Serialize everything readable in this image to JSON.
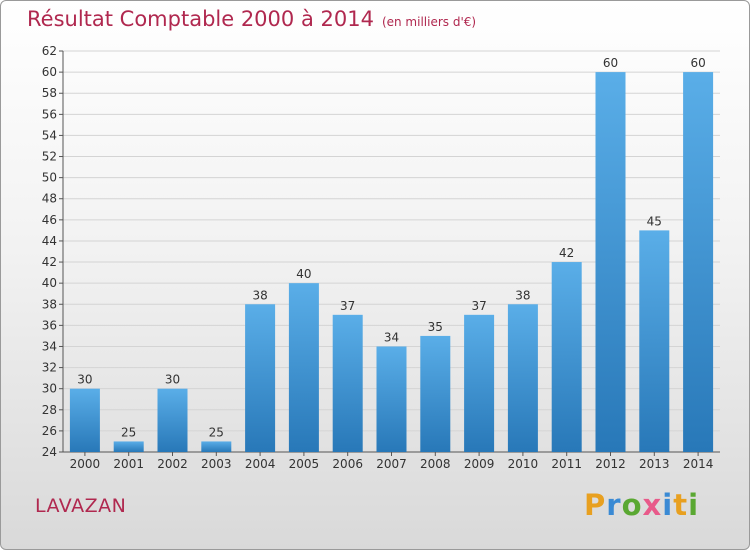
{
  "title": "Résultat Comptable 2000 à 2014",
  "unit": "(en milliers d'€)",
  "place": "LAVAZAN",
  "logo": {
    "text": "Proxiti",
    "letters": [
      "P",
      "r",
      "o",
      "x",
      "i",
      "t",
      "i"
    ],
    "colors": [
      "#e8a020",
      "#3a8ad4",
      "#5aa832",
      "#e85a8a",
      "#3a8ad4",
      "#e8a020",
      "#5aa832"
    ]
  },
  "chart_data": {
    "type": "bar",
    "title": "Résultat Comptable 2000 à 2014",
    "xlabel": "",
    "ylabel": "",
    "categories": [
      "2000",
      "2001",
      "2002",
      "2003",
      "2004",
      "2005",
      "2006",
      "2007",
      "2008",
      "2009",
      "2010",
      "2011",
      "2012",
      "2013",
      "2014"
    ],
    "values": [
      30,
      25,
      30,
      25,
      38,
      40,
      37,
      34,
      35,
      37,
      38,
      42,
      60,
      45,
      60
    ],
    "ylim": [
      24,
      62
    ],
    "yticks": [
      24,
      26,
      28,
      30,
      32,
      34,
      36,
      38,
      40,
      42,
      44,
      46,
      48,
      50,
      52,
      54,
      56,
      58,
      60,
      62
    ],
    "grid": true,
    "bar_color_top": "#5aaee8",
    "bar_color_bottom": "#2878b8"
  }
}
